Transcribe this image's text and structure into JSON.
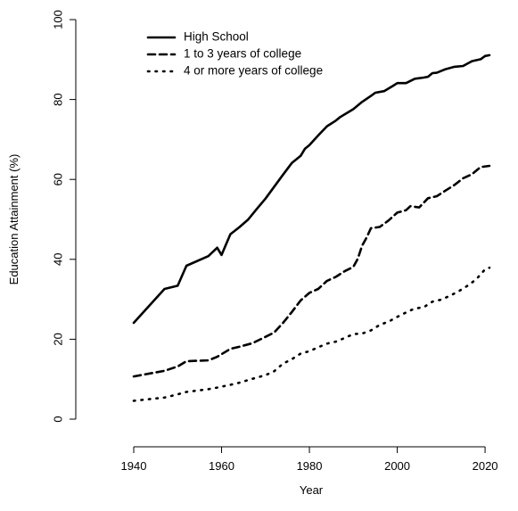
{
  "chart_data": {
    "type": "line",
    "title": "",
    "xlabel": "Year",
    "ylabel": "Education Attainment (%)",
    "xlim": [
      1940,
      2021
    ],
    "ylim": [
      0,
      100
    ],
    "xticks": [
      1940,
      1960,
      1980,
      2000,
      2020
    ],
    "yticks": [
      0,
      20,
      40,
      60,
      80,
      100
    ],
    "grid": false,
    "legend_position": "top-left",
    "series": [
      {
        "name": "High School",
        "line_style": "solid",
        "color": "#000000",
        "points": [
          [
            1940,
            24.1
          ],
          [
            1947,
            32.6
          ],
          [
            1950,
            33.4
          ],
          [
            1952,
            38.4
          ],
          [
            1957,
            40.8
          ],
          [
            1959,
            42.9
          ],
          [
            1960,
            41.1
          ],
          [
            1962,
            46.3
          ],
          [
            1964,
            48.0
          ],
          [
            1966,
            49.9
          ],
          [
            1968,
            52.6
          ],
          [
            1970,
            55.2
          ],
          [
            1972,
            58.2
          ],
          [
            1974,
            61.2
          ],
          [
            1976,
            64.1
          ],
          [
            1978,
            65.9
          ],
          [
            1979,
            67.7
          ],
          [
            1980,
            68.6
          ],
          [
            1982,
            71.0
          ],
          [
            1984,
            73.3
          ],
          [
            1986,
            74.7
          ],
          [
            1987,
            75.6
          ],
          [
            1990,
            77.6
          ],
          [
            1992,
            79.4
          ],
          [
            1994,
            80.9
          ],
          [
            1995,
            81.7
          ],
          [
            1997,
            82.1
          ],
          [
            1999,
            83.4
          ],
          [
            2000,
            84.1
          ],
          [
            2002,
            84.1
          ],
          [
            2004,
            85.2
          ],
          [
            2006,
            85.5
          ],
          [
            2007,
            85.7
          ],
          [
            2008,
            86.6
          ],
          [
            2009,
            86.7
          ],
          [
            2011,
            87.6
          ],
          [
            2013,
            88.2
          ],
          [
            2015,
            88.4
          ],
          [
            2017,
            89.6
          ],
          [
            2019,
            90.1
          ],
          [
            2020,
            90.9
          ],
          [
            2021,
            91.1
          ]
        ]
      },
      {
        "name": "1 to 3 years of college",
        "line_style": "dashed",
        "color": "#000000",
        "points": [
          [
            1940,
            10.7
          ],
          [
            1947,
            12.1
          ],
          [
            1950,
            13.2
          ],
          [
            1952,
            14.5
          ],
          [
            1957,
            14.7
          ],
          [
            1959,
            15.6
          ],
          [
            1962,
            17.6
          ],
          [
            1964,
            18.1
          ],
          [
            1967,
            19.0
          ],
          [
            1970,
            20.6
          ],
          [
            1972,
            21.7
          ],
          [
            1974,
            24.1
          ],
          [
            1976,
            26.8
          ],
          [
            1978,
            29.7
          ],
          [
            1980,
            31.6
          ],
          [
            1982,
            32.6
          ],
          [
            1984,
            34.6
          ],
          [
            1986,
            35.6
          ],
          [
            1988,
            37.0
          ],
          [
            1990,
            38.1
          ],
          [
            1991,
            40.1
          ],
          [
            1992,
            43.4
          ],
          [
            1993,
            45.4
          ],
          [
            1994,
            47.8
          ],
          [
            1996,
            48.1
          ],
          [
            1998,
            49.7
          ],
          [
            2000,
            51.7
          ],
          [
            2002,
            52.3
          ],
          [
            2003,
            53.3
          ],
          [
            2005,
            53.0
          ],
          [
            2007,
            55.3
          ],
          [
            2009,
            55.8
          ],
          [
            2011,
            57.2
          ],
          [
            2013,
            58.6
          ],
          [
            2015,
            60.3
          ],
          [
            2017,
            61.3
          ],
          [
            2019,
            63.1
          ],
          [
            2021,
            63.4
          ]
        ]
      },
      {
        "name": "4 or more years of college",
        "line_style": "dotted",
        "color": "#000000",
        "points": [
          [
            1940,
            4.6
          ],
          [
            1947,
            5.4
          ],
          [
            1950,
            6.2
          ],
          [
            1952,
            6.8
          ],
          [
            1957,
            7.5
          ],
          [
            1959,
            7.9
          ],
          [
            1962,
            8.6
          ],
          [
            1964,
            9.1
          ],
          [
            1967,
            10.1
          ],
          [
            1970,
            11.0
          ],
          [
            1972,
            12.0
          ],
          [
            1974,
            13.9
          ],
          [
            1976,
            15.0
          ],
          [
            1978,
            16.4
          ],
          [
            1980,
            17.0
          ],
          [
            1982,
            18.0
          ],
          [
            1984,
            18.9
          ],
          [
            1986,
            19.4
          ],
          [
            1988,
            20.3
          ],
          [
            1990,
            21.3
          ],
          [
            1992,
            21.4
          ],
          [
            1994,
            22.2
          ],
          [
            1996,
            23.6
          ],
          [
            1998,
            24.4
          ],
          [
            2000,
            25.6
          ],
          [
            2002,
            26.7
          ],
          [
            2004,
            27.7
          ],
          [
            2006,
            28.0
          ],
          [
            2008,
            29.4
          ],
          [
            2010,
            29.9
          ],
          [
            2012,
            30.9
          ],
          [
            2014,
            32.0
          ],
          [
            2016,
            33.4
          ],
          [
            2018,
            35.0
          ],
          [
            2020,
            37.5
          ],
          [
            2021,
            37.9
          ]
        ]
      }
    ]
  }
}
